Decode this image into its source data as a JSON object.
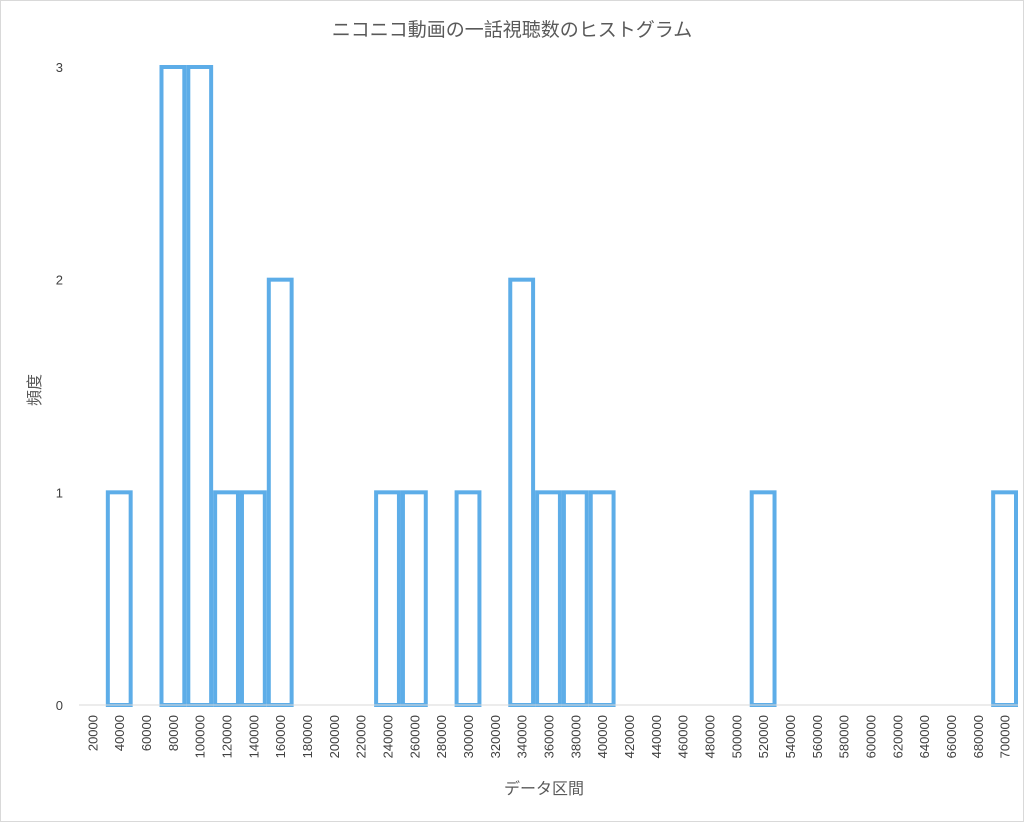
{
  "chart_data": {
    "type": "bar",
    "title": "ニコニコ動画の一話視聴数のヒストグラム",
    "xlabel": "データ区間",
    "ylabel": "頻度",
    "categories": [
      "20000",
      "40000",
      "60000",
      "80000",
      "100000",
      "120000",
      "140000",
      "160000",
      "180000",
      "200000",
      "220000",
      "240000",
      "260000",
      "280000",
      "300000",
      "320000",
      "340000",
      "360000",
      "380000",
      "400000",
      "420000",
      "440000",
      "460000",
      "480000",
      "500000",
      "520000",
      "540000",
      "560000",
      "580000",
      "600000",
      "620000",
      "640000",
      "660000",
      "680000",
      "700000"
    ],
    "values": [
      0,
      1,
      0,
      3,
      3,
      1,
      1,
      2,
      0,
      0,
      0,
      1,
      1,
      0,
      1,
      0,
      2,
      1,
      1,
      1,
      0,
      0,
      0,
      0,
      0,
      1,
      0,
      0,
      0,
      0,
      0,
      0,
      0,
      0,
      1
    ],
    "ylim": [
      0,
      3
    ],
    "yticks": [
      "0",
      "1",
      "2",
      "3"
    ],
    "grid": false,
    "legend": "none",
    "colors": {
      "bar_outline": "#5DADE8",
      "bar_fill": "#FFFFFF",
      "text": "#595959",
      "axis": "#D9D9D9"
    }
  }
}
